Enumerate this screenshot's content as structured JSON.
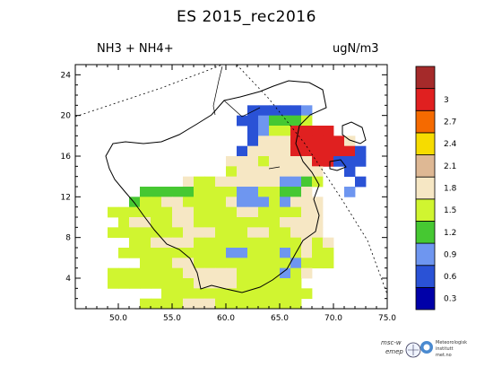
{
  "title": "ES 2015_rec2016",
  "variable": "NH3 + NH4+",
  "unit": "ugN/m3",
  "x_ticks": [
    "50.0",
    "55.0",
    "60.0",
    "65.0",
    "70.0",
    "75.0"
  ],
  "y_ticks": [
    "4",
    "8",
    "12",
    "16",
    "20",
    "24"
  ],
  "colorbar": {
    "labels": [
      "0.3",
      "0.6",
      "0.9",
      "1.2",
      "1.5",
      "1.8",
      "2.1",
      "2.4",
      "2.7",
      "3"
    ],
    "colors": [
      "#0000a8",
      "#2a52d6",
      "#6e96f0",
      "#46c832",
      "#d0f530",
      "#f6e7c4",
      "#deb894",
      "#f6dc00",
      "#f56a00",
      "#e02020",
      "#a52a2a"
    ]
  },
  "logos": {
    "left_line1": "msc-w",
    "left_line2": "emep",
    "right_line1": "Meteorologisk",
    "right_line2": "institutt",
    "right_line3": "met.no"
  },
  "grid": {
    "x0": 46,
    "y0": 1,
    "ncol": 29,
    "nrow": 24,
    "rows": [
      ".............................",
      ".............................",
      ".............................",
      ".............................",
      "................111112.......",
      "...............1123334.......",
      "................12449999.....",
      "................1555999995...",
      "...............155559999991..",
      "..............5554555599111..",
      "..............455555555..1...",
      "..........5445555552234...1..",
      "......3333344442244335...2...",
      ".....344554444522242555......",
      "...44444455444455444455......",
      "....4554455444444445555......",
      "...44444445554445544555......",
      ".....4455554444444444545.....",
      "....44444444442244424544.....",
      "......444554444444442444.....",
      "...4444444555554444245.......",
      "...444444445555444444........",
      "........44444444444444.......",
      "......444455544444444........"
    ]
  }
}
